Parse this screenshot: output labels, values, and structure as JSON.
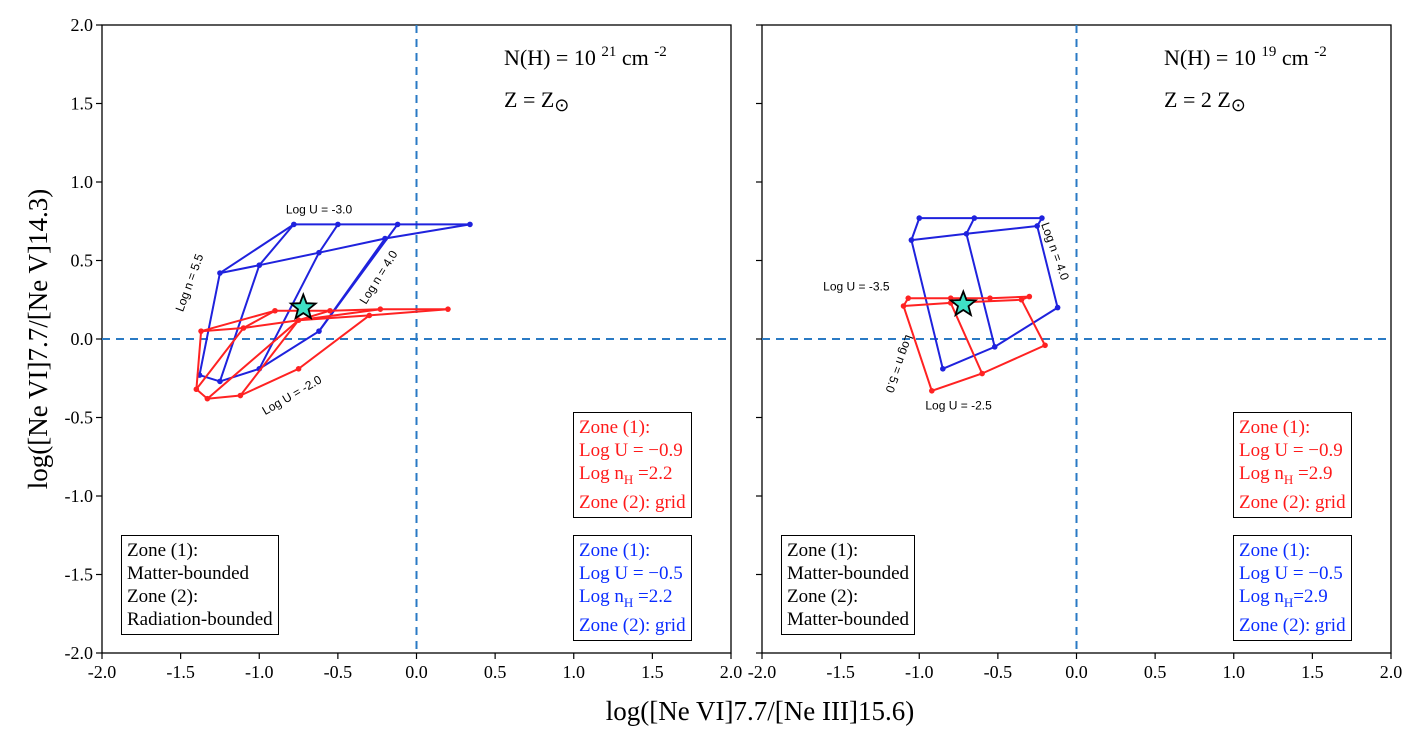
{
  "chart_data": {
    "type": "line",
    "xlabel": "log([Ne VI]7.7/[Ne III]15.6)",
    "ylabel": "log([Ne VI]7.7/[Ne V]14.3)",
    "x_tick_labels": [
      "-2.0",
      "-1.5",
      "-1.0",
      "-0.5",
      "0.0",
      "0.5",
      "1.0",
      "1.5",
      "2.0"
    ],
    "y_tick_labels": [
      "2.0",
      "1.5",
      "1.0",
      "0.5",
      "0.0",
      "-0.5",
      "-1.0",
      "-1.5",
      "-2.0"
    ],
    "panels": [
      {
        "xlim": [
          -2.0,
          2.0
        ],
        "ylim": [
          -2.0,
          2.0
        ],
        "reference_lines": {
          "x": 0.0,
          "y": 0.0
        },
        "annotation_line1": {
          "prefix": "N(H) = 10 ",
          "exp": "21",
          "mid": " cm ",
          "exp2": "-2"
        },
        "annotation_line2": {
          "prefix": "Z = Z",
          "sub": "⊙"
        },
        "observed_point": {
          "x": -0.72,
          "y": 0.2
        },
        "series": [
          {
            "name": "blue grid",
            "color": "#1f22dd",
            "lines": [
              [
                [
                  -1.25,
                  0.42
                ],
                [
                  -0.78,
                  0.73
                ],
                [
                  -0.5,
                  0.73
                ],
                [
                  -0.12,
                  0.73
                ],
                [
                  0.34,
                  0.73
                ]
              ],
              [
                [
                  -1.25,
                  0.42
                ],
                [
                  -1.0,
                  0.47
                ],
                [
                  -0.62,
                  0.55
                ],
                [
                  -0.2,
                  0.64
                ],
                [
                  0.34,
                  0.73
                ]
              ],
              [
                [
                  -1.38,
                  -0.23
                ],
                [
                  -1.25,
                  0.42
                ]
              ],
              [
                [
                  -1.38,
                  -0.23
                ],
                [
                  -1.25,
                  -0.27
                ],
                [
                  -1.0,
                  -0.19
                ],
                [
                  -0.62,
                  0.05
                ],
                [
                  -0.12,
                  0.73
                ]
              ],
              [
                [
                  -1.25,
                  -0.27
                ],
                [
                  -1.0,
                  0.47
                ],
                [
                  -0.78,
                  0.73
                ]
              ],
              [
                [
                  -1.0,
                  -0.19
                ],
                [
                  -0.62,
                  0.55
                ],
                [
                  -0.5,
                  0.73
                ]
              ],
              [
                [
                  -0.62,
                  0.05
                ],
                [
                  -0.2,
                  0.64
                ]
              ]
            ]
          },
          {
            "name": "red grid",
            "color": "#ff2222",
            "lines": [
              [
                [
                  -1.37,
                  0.05
                ],
                [
                  -0.9,
                  0.18
                ],
                [
                  -0.55,
                  0.18
                ],
                [
                  -0.23,
                  0.19
                ],
                [
                  0.2,
                  0.19
                ]
              ],
              [
                [
                  -1.37,
                  0.05
                ],
                [
                  -1.1,
                  0.07
                ],
                [
                  -0.75,
                  0.12
                ],
                [
                  -0.3,
                  0.15
                ],
                [
                  0.2,
                  0.19
                ]
              ],
              [
                [
                  -1.37,
                  0.05
                ],
                [
                  -1.4,
                  -0.32
                ],
                [
                  -1.33,
                  -0.38
                ],
                [
                  -1.12,
                  -0.36
                ],
                [
                  -0.75,
                  -0.19
                ],
                [
                  -0.3,
                  0.15
                ]
              ],
              [
                [
                  -1.4,
                  -0.32
                ],
                [
                  -1.1,
                  0.07
                ],
                [
                  -0.9,
                  0.18
                ]
              ],
              [
                [
                  -1.33,
                  -0.38
                ],
                [
                  -0.75,
                  0.12
                ],
                [
                  -0.55,
                  0.18
                ]
              ],
              [
                [
                  -1.12,
                  -0.36
                ],
                [
                  -0.75,
                  0.12
                ],
                [
                  -0.23,
                  0.19
                ]
              ]
            ]
          }
        ],
        "grid_labels": [
          {
            "text": "Log U = -3.0",
            "x": -0.62,
            "y": 0.8,
            "rotate": 0
          },
          {
            "text": "Log n = 5.5",
            "x": -1.42,
            "y": 0.35,
            "rotate": -70
          },
          {
            "text": "Log n = 4.0",
            "x": -0.22,
            "y": 0.38,
            "rotate": -58
          },
          {
            "text": "Log U = -2.0",
            "x": -0.78,
            "y": -0.38,
            "rotate": -30
          }
        ],
        "legend_red": {
          "l1": "Zone (1):",
          "l2": "Log U = −0.9",
          "l3_prefix": "Log n",
          "l3_sub": "H",
          "l3_val": " =2.2",
          "l4": "Zone (2): grid"
        },
        "legend_blue": {
          "l1": "Zone (1):",
          "l2": "Log U = −0.5",
          "l3_prefix": "Log n",
          "l3_sub": "H",
          "l3_val": " =2.2",
          "l4": "Zone (2): grid"
        },
        "legend_black": {
          "l1": "Zone (1):",
          "l2": "Matter-bounded",
          "l3": "Zone (2):",
          "l4": "Radiation-bounded"
        }
      },
      {
        "xlim": [
          -2.0,
          2.0
        ],
        "ylim": [
          -2.0,
          2.0
        ],
        "reference_lines": {
          "x": 0.0,
          "y": 0.0
        },
        "annotation_line1": {
          "prefix": "N(H) = 10 ",
          "exp": "19",
          "mid": " cm ",
          "exp2": "-2"
        },
        "annotation_line2": {
          "prefix": "Z = 2 Z",
          "sub": "⊙"
        },
        "observed_point": {
          "x": -0.72,
          "y": 0.22
        },
        "series": [
          {
            "name": "blue grid",
            "color": "#1f22dd",
            "lines": [
              [
                [
                  -1.0,
                  0.77
                ],
                [
                  -0.65,
                  0.77
                ],
                [
                  -0.22,
                  0.77
                ]
              ],
              [
                [
                  -1.05,
                  0.63
                ],
                [
                  -0.7,
                  0.67
                ],
                [
                  -0.25,
                  0.72
                ]
              ],
              [
                [
                  -1.0,
                  0.77
                ],
                [
                  -1.05,
                  0.63
                ],
                [
                  -0.85,
                  -0.19
                ]
              ],
              [
                [
                  -0.65,
                  0.77
                ],
                [
                  -0.7,
                  0.67
                ],
                [
                  -0.52,
                  -0.05
                ]
              ],
              [
                [
                  -0.22,
                  0.77
                ],
                [
                  -0.25,
                  0.72
                ],
                [
                  -0.12,
                  0.2
                ],
                [
                  -0.52,
                  -0.05
                ],
                [
                  -0.85,
                  -0.19
                ]
              ]
            ]
          },
          {
            "name": "red grid",
            "color": "#ff2222",
            "lines": [
              [
                [
                  -1.07,
                  0.26
                ],
                [
                  -0.8,
                  0.26
                ],
                [
                  -0.55,
                  0.26
                ],
                [
                  -0.3,
                  0.27
                ]
              ],
              [
                [
                  -1.1,
                  0.21
                ],
                [
                  -0.8,
                  0.23
                ],
                [
                  -0.35,
                  0.25
                ],
                [
                  -0.3,
                  0.27
                ]
              ],
              [
                [
                  -1.07,
                  0.26
                ],
                [
                  -1.1,
                  0.21
                ],
                [
                  -0.92,
                  -0.33
                ],
                [
                  -0.6,
                  -0.22
                ],
                [
                  -0.2,
                  -0.04
                ],
                [
                  -0.35,
                  0.25
                ]
              ],
              [
                [
                  -0.8,
                  0.26
                ],
                [
                  -0.8,
                  0.23
                ],
                [
                  -0.6,
                  -0.22
                ]
              ]
            ]
          }
        ],
        "grid_labels": [
          {
            "text": "Log U = -3.5",
            "x": -1.4,
            "y": 0.31,
            "rotate": 0
          },
          {
            "text": "Log n = 4.0",
            "x": -0.16,
            "y": 0.55,
            "rotate": 70
          },
          {
            "text": "Log n = 5.0",
            "x": -1.15,
            "y": -0.15,
            "rotate": 110
          },
          {
            "text": "Log U = -2.5",
            "x": -0.75,
            "y": -0.45,
            "rotate": 0
          }
        ],
        "legend_red": {
          "l1": "Zone (1):",
          "l2": "Log U = −0.9",
          "l3_prefix": "Log n",
          "l3_sub": "H",
          "l3_val": " =2.9",
          "l4": "Zone (2): grid"
        },
        "legend_blue": {
          "l1": "Zone (1):",
          "l2": "Log U = −0.5",
          "l3_prefix": "Log n",
          "l3_sub": "H",
          "l3_val": "=2.9",
          "l4": "Zone (2): grid"
        },
        "legend_black": {
          "l1": "Zone (1):",
          "l2": "Matter-bounded",
          "l3": "Zone (2):",
          "l4": "Matter-bounded"
        }
      }
    ]
  }
}
